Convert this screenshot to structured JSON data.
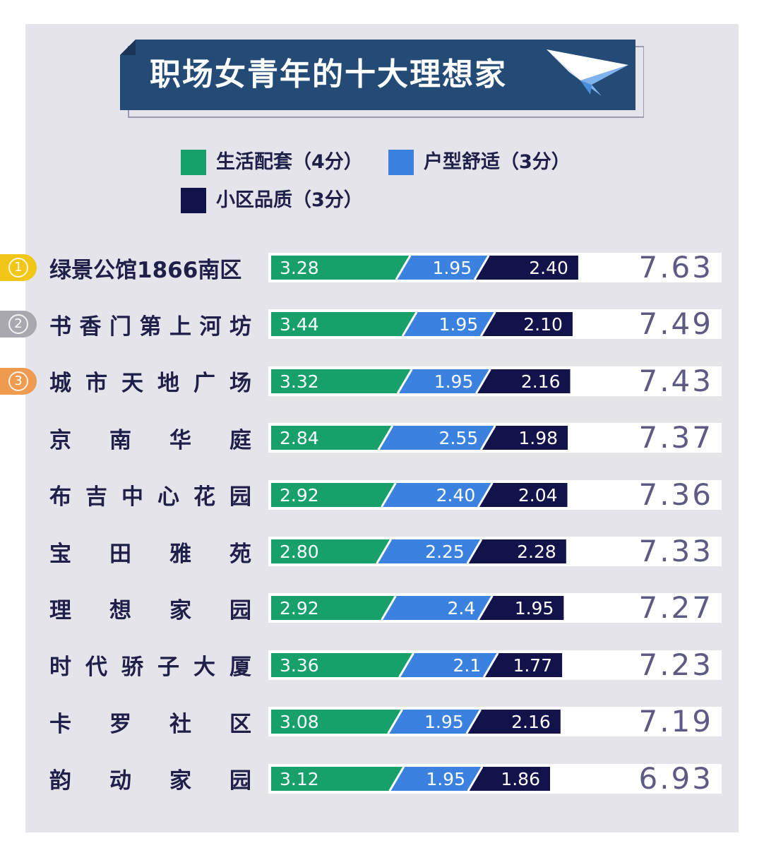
{
  "title": "职场女青年的十大理想家",
  "colors": {
    "background": "#e4e4ea",
    "banner": "#244a76",
    "living": "#17a06a",
    "layout": "#3b82e0",
    "quality": "#12134a",
    "total_text": "#5d5b84",
    "rank_gold": "#f2c617",
    "rank_silver": "#a8a8ae",
    "rank_bronze": "#ee9a4f"
  },
  "icons": {
    "title": "paper-plane-icon",
    "rank": "circled-number-badge"
  },
  "legend": [
    {
      "label": "生活配套（4分）",
      "color": "#17a06a"
    },
    {
      "label": "户型舒适（3分）",
      "color": "#3b82e0"
    },
    {
      "label": "小区品质（3分）",
      "color": "#12134a"
    }
  ],
  "chart_data": {
    "type": "bar",
    "stacked": true,
    "orientation": "horizontal",
    "categories": [
      "绿景公馆1866南区",
      "书香门第上河坊",
      "城市天地广场",
      "京南华庭",
      "布吉中心花园",
      "宝田雅苑",
      "理想家园",
      "时代骄子大厦",
      "卡罗社区",
      "韵动家园"
    ],
    "series": [
      {
        "name": "生活配套（4分）",
        "color": "#17a06a",
        "values": [
          3.28,
          3.44,
          3.32,
          2.84,
          2.92,
          2.8,
          2.92,
          3.36,
          3.08,
          3.12
        ],
        "labels": [
          "3.28",
          "3.44",
          "3.32",
          "2.84",
          "2.92",
          "2.80",
          "2.92",
          "3.36",
          "3.08",
          "3.12"
        ]
      },
      {
        "name": "户型舒适（3分）",
        "color": "#3b82e0",
        "values": [
          1.95,
          1.95,
          1.95,
          2.55,
          2.4,
          2.25,
          2.4,
          2.1,
          1.95,
          1.95
        ],
        "labels": [
          "1.95",
          "1.95",
          "1.95",
          "2.55",
          "2.40",
          "2.25",
          "2.4",
          "2.1",
          "1.95",
          "1.95"
        ]
      },
      {
        "name": "小区品质（3分）",
        "color": "#12134a",
        "values": [
          2.4,
          2.1,
          2.16,
          1.98,
          2.04,
          2.28,
          1.95,
          1.77,
          2.16,
          1.86
        ],
        "labels": [
          "2.40",
          "2.10",
          "2.16",
          "1.98",
          "2.04",
          "2.28",
          "1.95",
          "1.77",
          "2.16",
          "1.86"
        ]
      }
    ],
    "totals": [
      "7.63",
      "7.49",
      "7.43",
      "7.37",
      "7.36",
      "7.33",
      "7.27",
      "7.23",
      "7.19",
      "6.93"
    ],
    "ranks": [
      "1",
      "2",
      "3"
    ],
    "xlim": [
      0,
      10
    ],
    "grid": false,
    "legend_position": "top"
  }
}
